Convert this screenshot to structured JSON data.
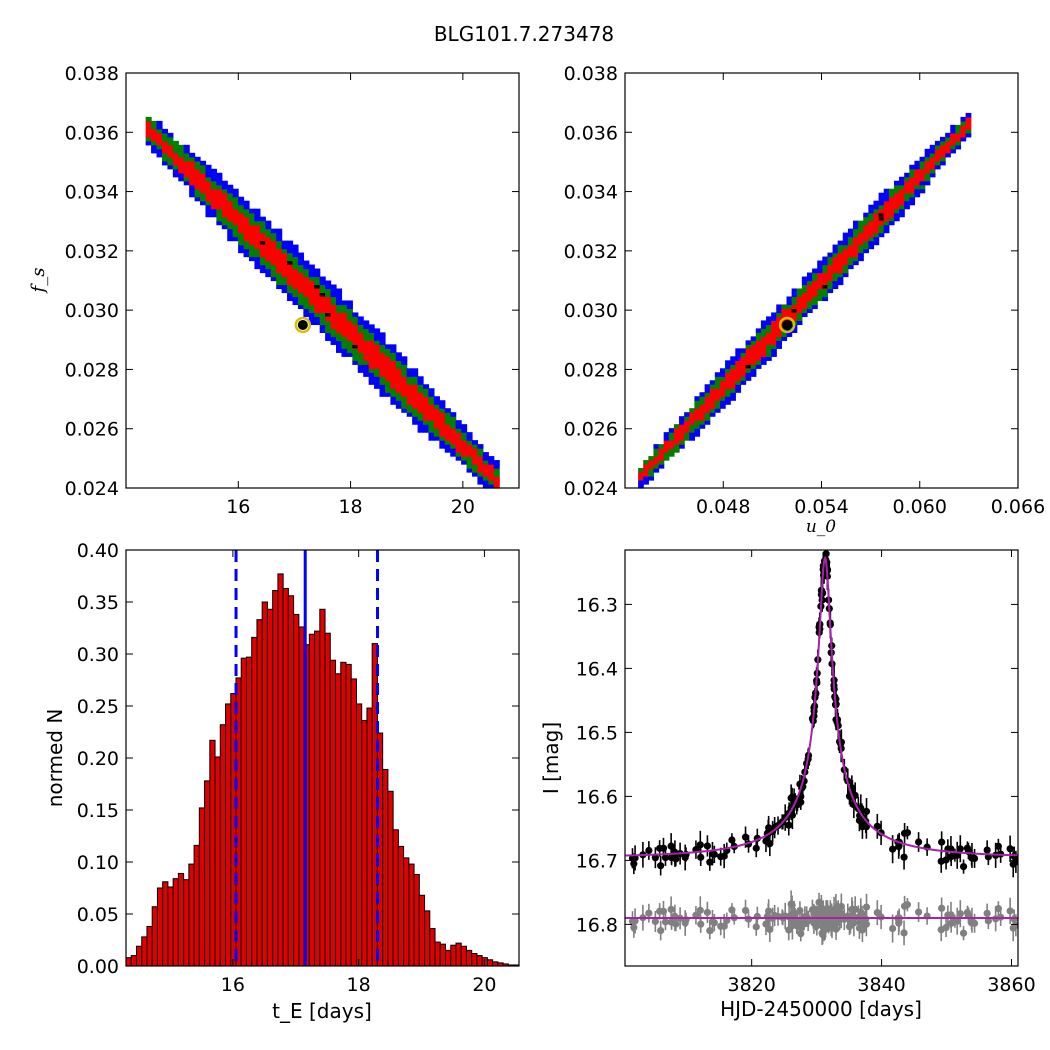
{
  "figure_title": "BLG101.7.273478",
  "colors": {
    "contour_1sigma": "#ff0000",
    "contour_2sigma": "#008000",
    "contour_3sigma": "#0000ff",
    "best_fit_marker": "#d4c000",
    "histogram_bar": "#e00000",
    "histogram_edge": "#000000",
    "median_line": "#0000ff",
    "model_curve": "#aa22aa",
    "data_points": "#000000",
    "residual_points": "#808080"
  },
  "chart_data": [
    {
      "type": "heatmap",
      "panel": "top-left",
      "x_param": "t_E",
      "ylabel": "f_s",
      "xlim": [
        14.0,
        21.0
      ],
      "ylim": [
        0.024,
        0.038
      ],
      "xticks": [
        "16",
        "18",
        "20"
      ],
      "xtick_values": [
        16,
        18,
        20
      ],
      "yticks": [
        "0.024",
        "0.026",
        "0.028",
        "0.030",
        "0.032",
        "0.034",
        "0.036",
        "0.038"
      ],
      "ytick_values": [
        0.024,
        0.026,
        0.028,
        0.03,
        0.032,
        0.034,
        0.036,
        0.038
      ],
      "region_axis": [
        [
          14.35,
          0.0361
        ],
        [
          20.55,
          0.0243
        ]
      ],
      "region_widths_dy": {
        "sigma3": 0.00095,
        "sigma2": 0.00068,
        "sigma1": 0.00038
      },
      "best_fit": [
        17.15,
        0.0295
      ]
    },
    {
      "type": "heatmap",
      "panel": "top-right",
      "xlabel": "u_0",
      "xlim": [
        0.042,
        0.066
      ],
      "ylim": [
        0.024,
        0.038
      ],
      "xticks": [
        "0.048",
        "0.054",
        "0.060",
        "0.066"
      ],
      "xtick_values": [
        0.048,
        0.054,
        0.06,
        0.066
      ],
      "yticks": [
        "0.024",
        "0.026",
        "0.028",
        "0.030",
        "0.032",
        "0.034",
        "0.036",
        "0.038"
      ],
      "ytick_values": [
        0.024,
        0.026,
        0.028,
        0.03,
        0.032,
        0.034,
        0.036,
        0.038
      ],
      "region_axis": [
        [
          0.0428,
          0.0244
        ],
        [
          0.0628,
          0.0363
        ]
      ],
      "region_widths_dy": {
        "sigma3": 0.0007,
        "sigma2": 0.0005,
        "sigma1": 0.0003
      },
      "best_fit": [
        0.0519,
        0.0295
      ]
    },
    {
      "type": "bar",
      "panel": "bottom-left",
      "xlabel": "t_E [days]",
      "ylabel": "normed N",
      "xlim": [
        14.3,
        20.55
      ],
      "ylim": [
        0.0,
        0.4
      ],
      "xticks": [
        "16",
        "18",
        "20"
      ],
      "xtick_values": [
        16,
        18,
        20
      ],
      "yticks": [
        "0.00",
        "0.05",
        "0.10",
        "0.15",
        "0.20",
        "0.25",
        "0.30",
        "0.35",
        "0.40"
      ],
      "ytick_values": [
        0,
        0.05,
        0.1,
        0.15,
        0.2,
        0.25,
        0.3,
        0.35,
        0.4
      ],
      "bin_start": 14.3,
      "bin_width": 0.0833,
      "values": [
        0.008,
        0.01,
        0.019,
        0.028,
        0.038,
        0.057,
        0.075,
        0.081,
        0.076,
        0.084,
        0.089,
        0.083,
        0.098,
        0.116,
        0.152,
        0.178,
        0.217,
        0.201,
        0.232,
        0.252,
        0.262,
        0.277,
        0.296,
        0.297,
        0.316,
        0.333,
        0.35,
        0.343,
        0.361,
        0.377,
        0.363,
        0.356,
        0.338,
        0.326,
        0.309,
        0.319,
        0.322,
        0.343,
        0.32,
        0.294,
        0.281,
        0.292,
        0.29,
        0.276,
        0.252,
        0.236,
        0.248,
        0.31,
        0.224,
        0.189,
        0.168,
        0.131,
        0.115,
        0.104,
        0.098,
        0.088,
        0.068,
        0.053,
        0.036,
        0.023,
        0.021,
        0.015,
        0.02,
        0.022,
        0.019,
        0.015,
        0.012,
        0.01,
        0.008,
        0.006,
        0.004,
        0.003,
        0.002,
        0.001,
        0.001
      ],
      "median": 17.15,
      "lower_bound": 16.05,
      "upper_bound": 18.3
    },
    {
      "type": "scatter",
      "panel": "bottom-right",
      "xlabel": "HJD-2450000 [days]",
      "ylabel": "I [mag]",
      "xlim": [
        3800.5,
        3861.0
      ],
      "ylim": [
        16.865,
        16.215
      ],
      "xticks": [
        "3820",
        "3840",
        "3860"
      ],
      "xtick_values": [
        3820,
        3840,
        3860
      ],
      "yticks": [
        "16.3",
        "16.4",
        "16.5",
        "16.6",
        "16.7",
        "16.8"
      ],
      "ytick_values": [
        16.3,
        16.4,
        16.5,
        16.6,
        16.7,
        16.8
      ],
      "model": {
        "t0": 3831.3,
        "u0": 0.052,
        "tE": 17.15,
        "fs": 0.0295,
        "baseline": 16.695
      },
      "residual_offset": 16.79
    }
  ]
}
